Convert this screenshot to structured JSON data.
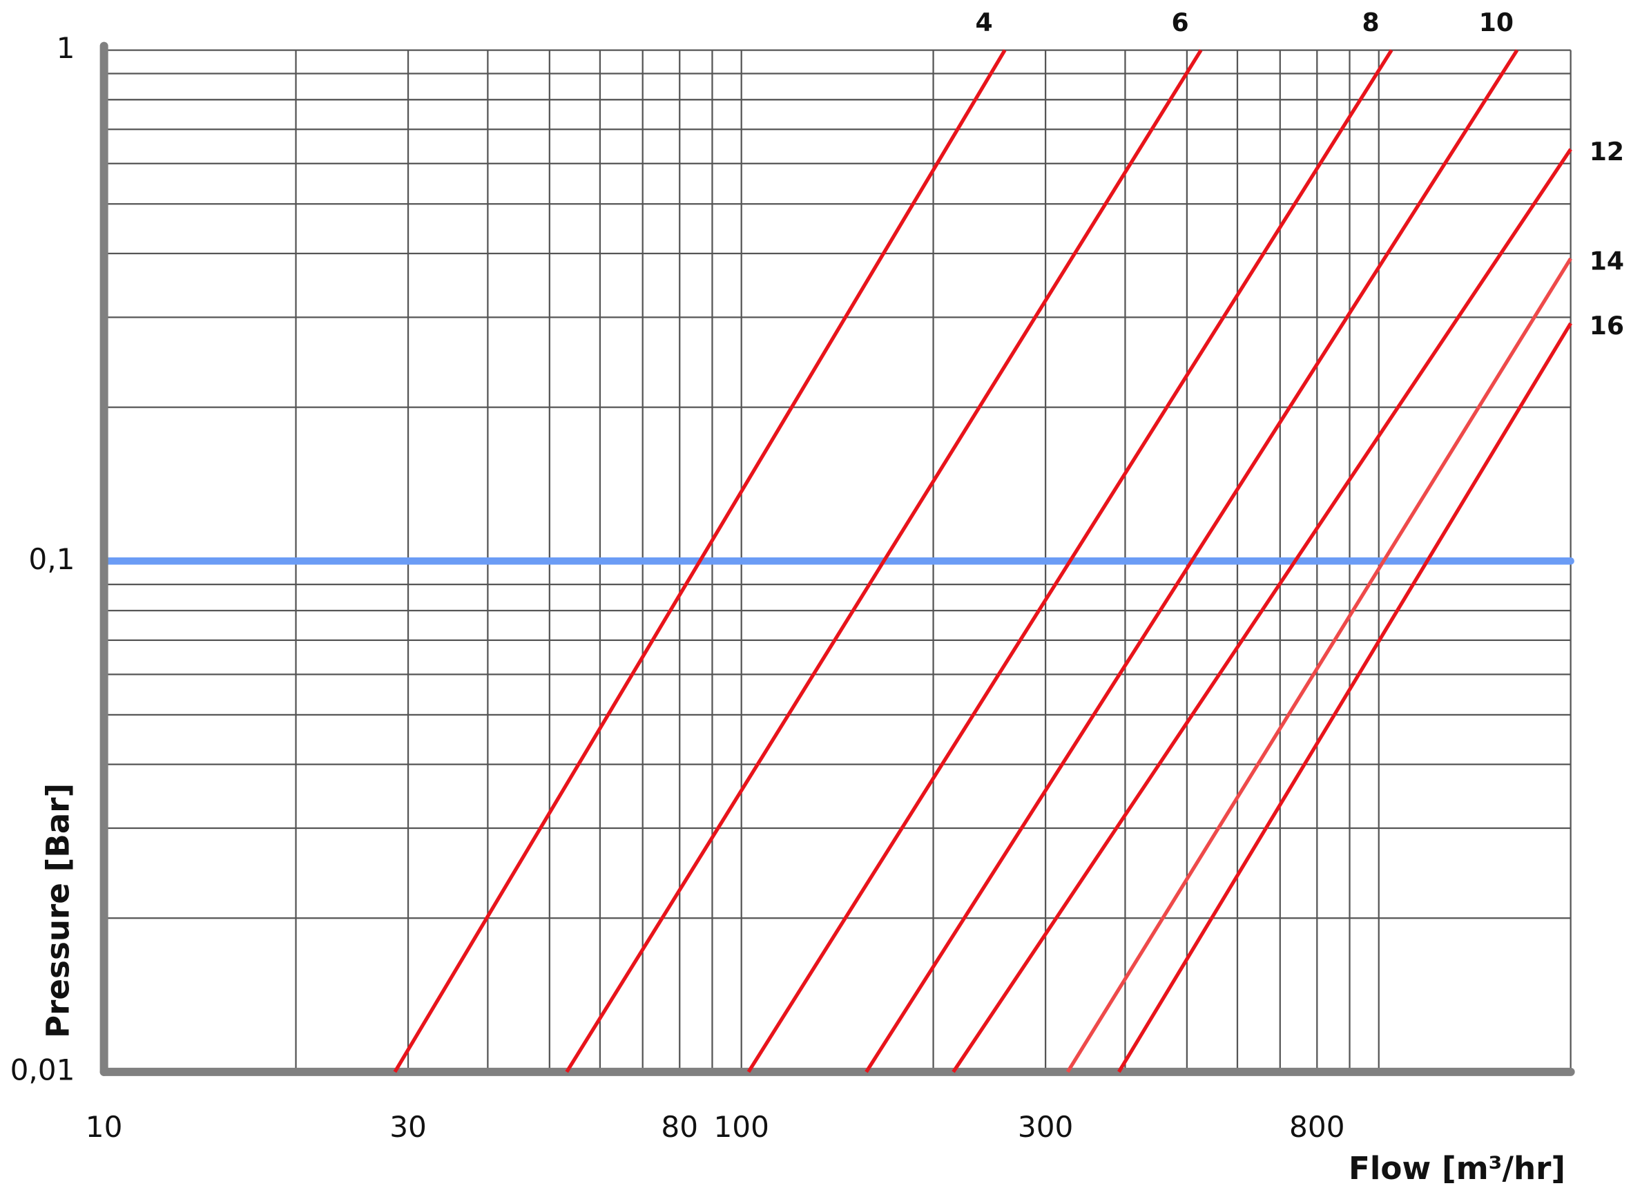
{
  "chart_data": {
    "type": "line",
    "xlabel": "Flow [m³/hr]",
    "ylabel": "Pressure [Bar]",
    "log_x": true,
    "log_y": true,
    "grid": true,
    "xlim": [
      10,
      2000
    ],
    "ylim": [
      0.01,
      1
    ],
    "xticks": [
      10,
      30,
      80,
      100,
      300,
      800
    ],
    "x_gridlines": [
      10,
      20,
      30,
      40,
      50,
      60,
      70,
      80,
      90,
      100,
      200,
      300,
      400,
      500,
      600,
      700,
      800,
      900,
      1000,
      2000
    ],
    "yticks": [
      {
        "value": 0.01,
        "label": "0,01"
      },
      {
        "value": 0.1,
        "label": "0,1"
      },
      {
        "value": 1,
        "label": "1"
      }
    ],
    "y_gridlines": [
      0.01,
      0.02,
      0.03,
      0.04,
      0.05,
      0.06,
      0.07,
      0.08,
      0.09,
      0.1,
      0.2,
      0.3,
      0.4,
      0.5,
      0.6,
      0.7,
      0.8,
      0.9,
      1
    ],
    "reference_line": {
      "value": 0.1,
      "color": "#6b9cf5"
    },
    "series": [
      {
        "name": "4",
        "color": "#e8141b",
        "x": [
          28.6,
          259
        ],
        "values": [
          0.01,
          1
        ]
      },
      {
        "name": "6",
        "color": "#e8141b",
        "x": [
          53.2,
          526
        ],
        "values": [
          0.01,
          1
        ]
      },
      {
        "name": "8",
        "color": "#e8141b",
        "x": [
          102.6,
          1047
        ],
        "values": [
          0.01,
          1
        ]
      },
      {
        "name": "10",
        "color": "#e8141b",
        "x": [
          157,
          1648
        ],
        "values": [
          0.01,
          1
        ]
      },
      {
        "name": "12",
        "color": "#e8141b",
        "x": [
          215,
          2000
        ],
        "values": [
          0.01,
          0.64
        ]
      },
      {
        "name": "14",
        "color": "#ee4a4a",
        "x": [
          325,
          2000
        ],
        "values": [
          0.01,
          0.391
        ]
      },
      {
        "name": "16",
        "color": "#e8141b",
        "x": [
          391,
          2000
        ],
        "values": [
          0.01,
          0.292
        ]
      }
    ]
  }
}
